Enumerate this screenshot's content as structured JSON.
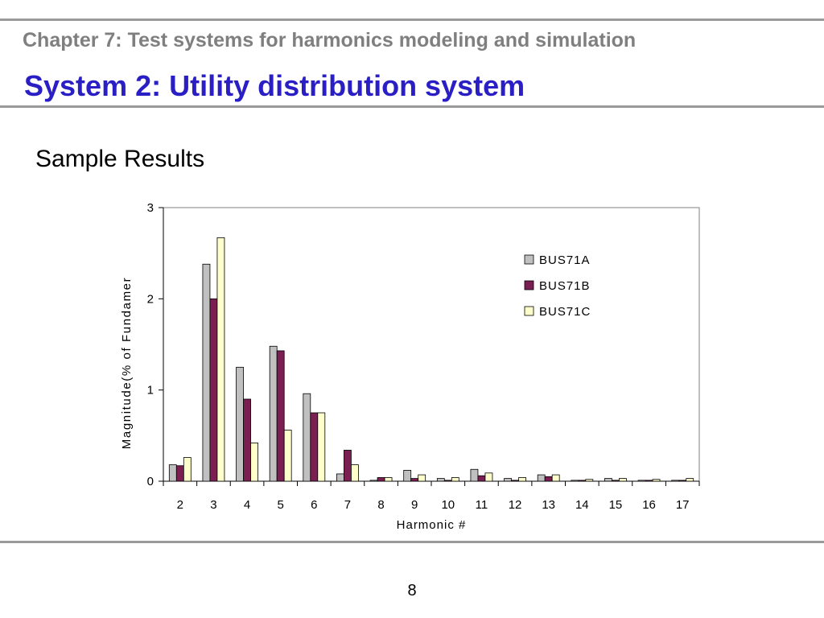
{
  "slide": {
    "chapter": "Chapter 7: Test systems for harmonics modeling and simulation",
    "title": "System 2: Utility distribution system",
    "subtitle": "Sample Results",
    "page_number": "8"
  },
  "colors": {
    "title": "#2a1fc4",
    "chapter": "#7f7f7f",
    "rule": "#9a9a9a"
  },
  "chart_data": {
    "type": "bar",
    "categories": [
      "2",
      "3",
      "4",
      "5",
      "6",
      "7",
      "8",
      "9",
      "10",
      "11",
      "12",
      "13",
      "14",
      "15",
      "16",
      "17"
    ],
    "series": [
      {
        "name": "BUS71A",
        "color": "#c0c0c0",
        "values": [
          0.18,
          2.38,
          1.25,
          1.48,
          0.96,
          0.08,
          0.01,
          0.12,
          0.03,
          0.13,
          0.03,
          0.07,
          0.01,
          0.03,
          0.01,
          0.01
        ]
      },
      {
        "name": "BUS71B",
        "color": "#7b1f52",
        "values": [
          0.17,
          2.0,
          0.9,
          1.43,
          0.75,
          0.34,
          0.04,
          0.03,
          0.01,
          0.06,
          0.01,
          0.05,
          0.01,
          0.01,
          0.01,
          0.01
        ]
      },
      {
        "name": "BUS71C",
        "color": "#ffffcc",
        "values": [
          0.26,
          2.67,
          0.42,
          0.56,
          0.75,
          0.18,
          0.04,
          0.07,
          0.04,
          0.09,
          0.04,
          0.07,
          0.02,
          0.03,
          0.02,
          0.03
        ]
      }
    ],
    "title": "",
    "xlabel": "Harmonic #",
    "ylabel": "Magnitude(% of Fundamer",
    "ylim": [
      0,
      3
    ],
    "yticks": [
      "0",
      "1",
      "2",
      "3"
    ],
    "grid": false,
    "legend_position": "top-right"
  }
}
